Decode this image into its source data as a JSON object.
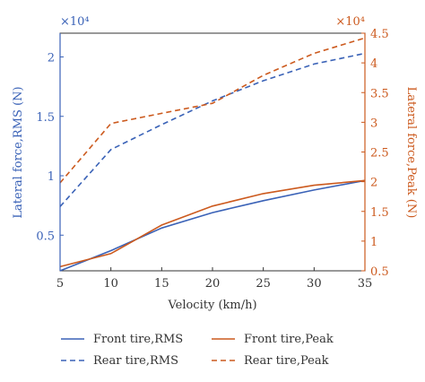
{
  "chart_data": {
    "type": "line",
    "x": [
      5,
      10,
      15,
      20,
      25,
      30,
      35
    ],
    "xlabel": "Velocity (km/h)",
    "xlim": [
      5,
      35
    ],
    "xticks": [
      "5",
      "10",
      "15",
      "20",
      "25",
      "30",
      "35"
    ],
    "left_axis": {
      "label": "Lateral force,RMS (N)",
      "multiplier": "×10⁴",
      "ylim": [
        0.2,
        2.2
      ],
      "ticks": [
        0.5,
        1,
        1.5,
        2
      ],
      "tick_labels": [
        "0.5",
        "1",
        "1.5",
        "2"
      ],
      "color": "#3a62b7"
    },
    "right_axis": {
      "label": "Lateral force,Peak (N)",
      "multiplier": "×10⁴",
      "ylim": [
        0.5,
        4.5
      ],
      "ticks": [
        0.5,
        1,
        1.5,
        2,
        2.5,
        3,
        3.5,
        4,
        4.5
      ],
      "tick_labels": [
        "0.5",
        "1",
        "1.5",
        "2",
        "2.5",
        "3",
        "3.5",
        "4",
        "4.5"
      ],
      "color": "#cc5a1e"
    },
    "series": [
      {
        "name": "Front tire,RMS",
        "axis": "left",
        "style": "solid",
        "color": "#3a62b7",
        "values": [
          0.2,
          0.37,
          0.56,
          0.69,
          0.79,
          0.88,
          0.96
        ]
      },
      {
        "name": "Rear tire,RMS",
        "axis": "left",
        "style": "dashed",
        "color": "#3a62b7",
        "values": [
          0.74,
          1.22,
          1.43,
          1.63,
          1.8,
          1.94,
          2.03
        ]
      },
      {
        "name": "Front tire,Peak",
        "axis": "right",
        "style": "solid",
        "color": "#cc5a1e",
        "values": [
          0.57,
          0.79,
          1.27,
          1.59,
          1.8,
          1.94,
          2.02
        ]
      },
      {
        "name": "Rear tire,Peak",
        "axis": "right",
        "style": "dashed",
        "color": "#cc5a1e",
        "values": [
          1.98,
          2.98,
          3.15,
          3.32,
          3.79,
          4.16,
          4.42
        ]
      }
    ],
    "legend_position": "below"
  }
}
